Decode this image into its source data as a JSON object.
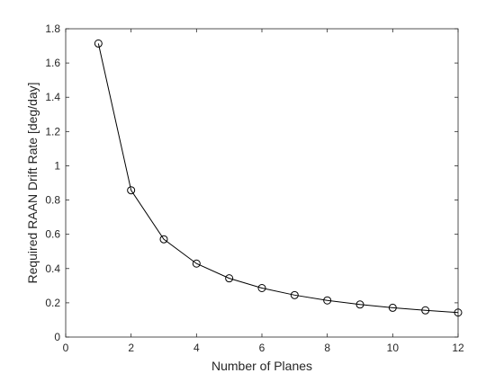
{
  "chart_data": {
    "type": "line",
    "title": "",
    "xlabel": "Number of Planes",
    "ylabel": "Required RAAN Drift Rate [deg/day]",
    "xlim": [
      0,
      12
    ],
    "ylim": [
      0,
      1.8
    ],
    "xticks": [
      0,
      2,
      4,
      6,
      8,
      10,
      12
    ],
    "xtick_labels": [
      "0",
      "2",
      "4",
      "6",
      "8",
      "10",
      "12"
    ],
    "yticks": [
      0,
      0.2,
      0.4,
      0.6,
      0.8,
      1.0,
      1.2,
      1.4,
      1.6,
      1.8
    ],
    "ytick_labels": [
      "0",
      "0.2",
      "0.4",
      "0.6",
      "0.8",
      "1",
      "1.2",
      "1.4",
      "1.6",
      "1.8"
    ],
    "grid": false,
    "marker": "circle-open",
    "line_color": "#000000",
    "series": [
      {
        "x": [
          1,
          2,
          3,
          4,
          5,
          6,
          7,
          8,
          9,
          10,
          11,
          12
        ],
        "values": [
          1.714,
          0.857,
          0.571,
          0.429,
          0.343,
          0.286,
          0.245,
          0.214,
          0.19,
          0.171,
          0.156,
          0.143
        ]
      }
    ]
  }
}
